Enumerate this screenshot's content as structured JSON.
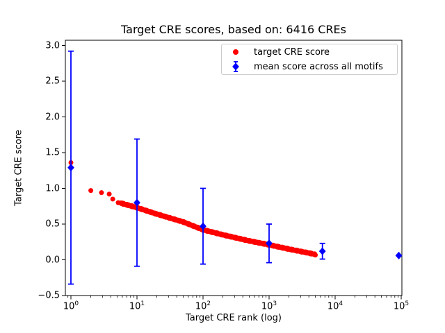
{
  "chart_data": {
    "type": "scatter",
    "title": "Target CRE scores, based on: 6416 CREs",
    "xlabel": "Target CRE rank (log)",
    "ylabel": "Target CRE score",
    "x_scale": "log",
    "xlim": [
      0.82,
      102000
    ],
    "ylim": [
      -0.5,
      3.07
    ],
    "grid": false,
    "x_ticks": [
      {
        "label": "10^0",
        "value": 1
      },
      {
        "label": "10^1",
        "value": 10
      },
      {
        "label": "10^2",
        "value": 100
      },
      {
        "label": "10^3",
        "value": 1000
      },
      {
        "label": "10^4",
        "value": 10000
      },
      {
        "label": "10^5",
        "value": 100000
      }
    ],
    "y_ticks": [
      {
        "label": "3.0",
        "value": 3.0
      },
      {
        "label": "2.5",
        "value": 2.5
      },
      {
        "label": "2.0",
        "value": 2.0
      },
      {
        "label": "1.5",
        "value": 1.5
      },
      {
        "label": "1.0",
        "value": 1.0
      },
      {
        "label": "0.5",
        "value": 0.5
      },
      {
        "label": "0.0",
        "value": 0.0
      },
      {
        "label": "−0.5",
        "value": -0.5
      }
    ],
    "legend": {
      "position": "upper right",
      "items": [
        {
          "label": "target CRE score",
          "marker": "circle",
          "color": "#ff0000"
        },
        {
          "label": "mean score across all motifs",
          "marker": "diamond-errorbar",
          "color": "#0000ff"
        }
      ]
    },
    "series": [
      {
        "name": "target CRE score",
        "marker": "circle",
        "color": "#ff0000",
        "n_points": 6416,
        "head_points_rank_score": [
          [
            1,
            1.36
          ],
          [
            2,
            0.97
          ],
          [
            2.9,
            0.94
          ],
          [
            3.8,
            0.92
          ],
          [
            4.3,
            0.85
          ],
          [
            5.2,
            0.8
          ]
        ],
        "curve_knots_log10rank_score": [
          [
            0.75,
            0.795
          ],
          [
            1.0,
            0.73
          ],
          [
            1.3,
            0.64
          ],
          [
            1.7,
            0.53
          ],
          [
            2.0,
            0.42
          ],
          [
            2.3,
            0.35
          ],
          [
            2.7,
            0.265
          ],
          [
            3.0,
            0.21
          ],
          [
            3.3,
            0.15
          ],
          [
            3.6,
            0.095
          ],
          [
            3.7,
            0.075
          ]
        ]
      },
      {
        "name": "mean score across all motifs",
        "marker": "diamond",
        "color": "#0000ff",
        "points": [
          {
            "rank": 1,
            "mean": 1.29,
            "std": 1.63
          },
          {
            "rank": 10,
            "mean": 0.8,
            "std": 0.89
          },
          {
            "rank": 100,
            "mean": 0.47,
            "std": 0.53
          },
          {
            "rank": 1000,
            "mean": 0.23,
            "std": 0.27
          },
          {
            "rank": 6416,
            "mean": 0.12,
            "std": 0.11
          },
          {
            "rank": 92000,
            "mean": 0.06,
            "std": 0.0
          }
        ]
      }
    ],
    "colors": {
      "target_series": "#ff0000",
      "mean_series": "#0000ff",
      "spine": "#000000",
      "legend_border": "#cccccc",
      "background": "#ffffff"
    }
  }
}
